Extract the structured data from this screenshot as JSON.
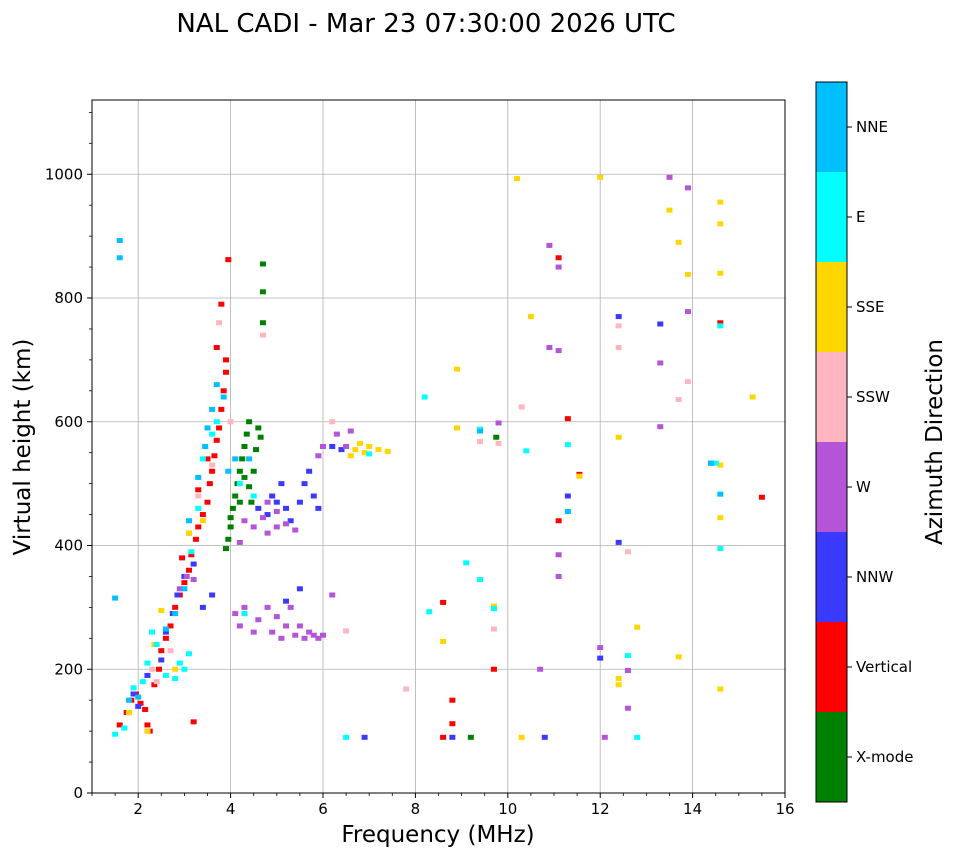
{
  "chart_data": {
    "type": "scatter",
    "title": "NAL CADI - Mar 23 07:30:00 2026 UTC",
    "xlabel": "Frequency (MHz)",
    "ylabel": "Virtual height (km)",
    "xlim": [
      1,
      16
    ],
    "ylim": [
      0,
      1120
    ],
    "xticks": [
      2,
      4,
      6,
      8,
      10,
      12,
      14,
      16
    ],
    "yticks": [
      0,
      200,
      400,
      600,
      800,
      1000
    ],
    "grid": true,
    "colorbar": {
      "label": "Azimuth Direction",
      "categories": [
        {
          "name": "X-mode",
          "color": "#008000"
        },
        {
          "name": "Vertical",
          "color": "#ff0000"
        },
        {
          "name": "NNW",
          "color": "#3a3aff"
        },
        {
          "name": "W",
          "color": "#b455d8"
        },
        {
          "name": "SSW",
          "color": "#ffb6c1"
        },
        {
          "name": "SSE",
          "color": "#ffd700"
        },
        {
          "name": "E",
          "color": "#00ffff"
        },
        {
          "name": "NNE",
          "color": "#00bfff"
        }
      ]
    },
    "series": [
      {
        "name": "X-mode",
        "points": [
          [
            3.9,
            395
          ],
          [
            3.95,
            410
          ],
          [
            4.0,
            430
          ],
          [
            4.0,
            445
          ],
          [
            4.05,
            460
          ],
          [
            4.1,
            480
          ],
          [
            4.15,
            500
          ],
          [
            4.2,
            520
          ],
          [
            4.25,
            540
          ],
          [
            4.3,
            560
          ],
          [
            4.35,
            580
          ],
          [
            4.4,
            600
          ],
          [
            4.3,
            510
          ],
          [
            4.4,
            495
          ],
          [
            4.5,
            520
          ],
          [
            4.55,
            555
          ],
          [
            4.6,
            590
          ],
          [
            4.65,
            575
          ],
          [
            4.2,
            470
          ],
          [
            4.45,
            470
          ],
          [
            4.7,
            855
          ],
          [
            4.7,
            810
          ],
          [
            4.7,
            760
          ],
          [
            9.2,
            90
          ],
          [
            9.75,
            575
          ]
        ]
      },
      {
        "name": "Vertical",
        "points": [
          [
            1.6,
            110
          ],
          [
            1.75,
            130
          ],
          [
            1.85,
            150
          ],
          [
            1.95,
            160
          ],
          [
            2.05,
            145
          ],
          [
            2.15,
            135
          ],
          [
            2.2,
            110
          ],
          [
            2.25,
            100
          ],
          [
            2.35,
            175
          ],
          [
            2.45,
            200
          ],
          [
            2.5,
            230
          ],
          [
            2.6,
            250
          ],
          [
            2.7,
            270
          ],
          [
            2.8,
            300
          ],
          [
            2.9,
            320
          ],
          [
            3.0,
            340
          ],
          [
            3.1,
            360
          ],
          [
            3.15,
            385
          ],
          [
            3.25,
            410
          ],
          [
            3.3,
            430
          ],
          [
            3.4,
            450
          ],
          [
            3.5,
            470
          ],
          [
            3.55,
            500
          ],
          [
            3.6,
            520
          ],
          [
            3.65,
            545
          ],
          [
            3.7,
            570
          ],
          [
            3.75,
            590
          ],
          [
            3.8,
            620
          ],
          [
            3.85,
            650
          ],
          [
            3.9,
            680
          ],
          [
            3.9,
            700
          ],
          [
            3.7,
            720
          ],
          [
            3.8,
            790
          ],
          [
            3.95,
            862
          ],
          [
            3.5,
            540
          ],
          [
            3.3,
            490
          ],
          [
            3.1,
            420
          ],
          [
            2.95,
            380
          ],
          [
            3.2,
            115
          ],
          [
            8.6,
            90
          ],
          [
            8.8,
            150
          ],
          [
            8.8,
            112
          ],
          [
            8.6,
            308
          ],
          [
            9.7,
            200
          ],
          [
            11.1,
            865
          ],
          [
            11.1,
            440
          ],
          [
            11.3,
            605
          ],
          [
            11.55,
            515
          ],
          [
            14.6,
            760
          ],
          [
            15.5,
            478
          ]
        ]
      },
      {
        "name": "NNW",
        "points": [
          [
            1.9,
            160
          ],
          [
            2.0,
            140
          ],
          [
            2.2,
            190
          ],
          [
            2.5,
            215
          ],
          [
            2.6,
            260
          ],
          [
            2.75,
            290
          ],
          [
            2.85,
            320
          ],
          [
            3.0,
            350
          ],
          [
            3.2,
            370
          ],
          [
            3.4,
            300
          ],
          [
            3.6,
            320
          ],
          [
            4.3,
            290
          ],
          [
            4.6,
            460
          ],
          [
            4.8,
            450
          ],
          [
            4.9,
            480
          ],
          [
            5.0,
            470
          ],
          [
            5.1,
            500
          ],
          [
            5.2,
            460
          ],
          [
            5.3,
            440
          ],
          [
            5.5,
            470
          ],
          [
            5.6,
            500
          ],
          [
            5.7,
            520
          ],
          [
            5.8,
            480
          ],
          [
            5.9,
            460
          ],
          [
            5.2,
            310
          ],
          [
            5.5,
            330
          ],
          [
            6.2,
            560
          ],
          [
            6.4,
            555
          ],
          [
            6.9,
            90
          ],
          [
            8.8,
            90
          ],
          [
            10.8,
            90
          ],
          [
            11.3,
            480
          ],
          [
            12.0,
            218
          ],
          [
            12.4,
            405
          ],
          [
            12.4,
            770
          ],
          [
            13.3,
            758
          ],
          [
            14.4,
            533
          ]
        ]
      },
      {
        "name": "W",
        "points": [
          [
            2.9,
            330
          ],
          [
            3.05,
            350
          ],
          [
            3.2,
            345
          ],
          [
            4.1,
            290
          ],
          [
            4.2,
            270
          ],
          [
            4.3,
            300
          ],
          [
            4.5,
            260
          ],
          [
            4.6,
            280
          ],
          [
            4.8,
            300
          ],
          [
            4.9,
            260
          ],
          [
            5.0,
            285
          ],
          [
            5.1,
            250
          ],
          [
            5.2,
            270
          ],
          [
            5.3,
            300
          ],
          [
            5.4,
            255
          ],
          [
            5.5,
            270
          ],
          [
            5.6,
            250
          ],
          [
            5.7,
            260
          ],
          [
            5.8,
            255
          ],
          [
            5.9,
            250
          ],
          [
            6.0,
            255
          ],
          [
            6.2,
            320
          ],
          [
            4.3,
            440
          ],
          [
            4.5,
            430
          ],
          [
            4.7,
            445
          ],
          [
            4.8,
            420
          ],
          [
            5.0,
            430
          ],
          [
            5.2,
            435
          ],
          [
            5.4,
            425
          ],
          [
            4.8,
            470
          ],
          [
            5.0,
            455
          ],
          [
            4.2,
            405
          ],
          [
            5.9,
            545
          ],
          [
            6.0,
            560
          ],
          [
            6.3,
            580
          ],
          [
            6.6,
            585
          ],
          [
            6.5,
            560
          ],
          [
            9.8,
            598
          ],
          [
            10.7,
            200
          ],
          [
            10.9,
            885
          ],
          [
            10.9,
            720
          ],
          [
            11.1,
            715
          ],
          [
            11.1,
            385
          ],
          [
            11.1,
            350
          ],
          [
            11.1,
            850
          ],
          [
            12.0,
            235
          ],
          [
            12.1,
            90
          ],
          [
            12.6,
            137
          ],
          [
            12.6,
            198
          ],
          [
            13.3,
            592
          ],
          [
            13.3,
            695
          ],
          [
            13.5,
            995
          ],
          [
            13.9,
            978
          ],
          [
            13.9,
            778
          ]
        ]
      },
      {
        "name": "SSW",
        "points": [
          [
            2.3,
            200
          ],
          [
            2.4,
            180
          ],
          [
            2.7,
            230
          ],
          [
            3.1,
            420
          ],
          [
            3.3,
            480
          ],
          [
            3.6,
            530
          ],
          [
            3.75,
            760
          ],
          [
            4.0,
            600
          ],
          [
            4.7,
            740
          ],
          [
            6.2,
            600
          ],
          [
            6.5,
            262
          ],
          [
            7.8,
            168
          ],
          [
            9.4,
            568
          ],
          [
            9.7,
            265
          ],
          [
            9.8,
            565
          ],
          [
            10.3,
            624
          ],
          [
            12.4,
            720
          ],
          [
            12.4,
            755
          ],
          [
            12.6,
            390
          ],
          [
            13.7,
            636
          ],
          [
            13.9,
            665
          ]
        ]
      },
      {
        "name": "SSE",
        "points": [
          [
            1.8,
            130
          ],
          [
            2.2,
            100
          ],
          [
            2.35,
            240
          ],
          [
            2.5,
            295
          ],
          [
            2.8,
            200
          ],
          [
            3.1,
            420
          ],
          [
            3.4,
            440
          ],
          [
            6.6,
            545
          ],
          [
            6.7,
            555
          ],
          [
            6.8,
            565
          ],
          [
            6.9,
            550
          ],
          [
            7.0,
            560
          ],
          [
            7.2,
            555
          ],
          [
            7.4,
            552
          ],
          [
            8.6,
            245
          ],
          [
            8.9,
            685
          ],
          [
            8.9,
            590
          ],
          [
            9.7,
            302
          ],
          [
            10.2,
            993
          ],
          [
            10.3,
            90
          ],
          [
            10.5,
            770
          ],
          [
            11.55,
            512
          ],
          [
            12.0,
            995
          ],
          [
            12.4,
            575
          ],
          [
            12.4,
            185
          ],
          [
            12.4,
            175
          ],
          [
            12.8,
            268
          ],
          [
            13.5,
            942
          ],
          [
            13.7,
            890
          ],
          [
            13.7,
            220
          ],
          [
            13.9,
            838
          ],
          [
            14.6,
            955
          ],
          [
            14.6,
            920
          ],
          [
            14.6,
            840
          ],
          [
            14.6,
            530
          ],
          [
            14.6,
            445
          ],
          [
            14.6,
            168
          ],
          [
            15.3,
            640
          ]
        ]
      },
      {
        "name": "E",
        "points": [
          [
            1.5,
            95
          ],
          [
            1.7,
            105
          ],
          [
            1.9,
            170
          ],
          [
            2.1,
            180
          ],
          [
            2.2,
            210
          ],
          [
            2.3,
            260
          ],
          [
            2.4,
            240
          ],
          [
            2.6,
            190
          ],
          [
            2.8,
            185
          ],
          [
            2.9,
            210
          ],
          [
            3.0,
            200
          ],
          [
            3.1,
            225
          ],
          [
            3.15,
            390
          ],
          [
            3.3,
            460
          ],
          [
            3.4,
            540
          ],
          [
            3.6,
            580
          ],
          [
            3.7,
            600
          ],
          [
            4.2,
            500
          ],
          [
            4.3,
            290
          ],
          [
            4.5,
            480
          ],
          [
            6.5,
            90
          ],
          [
            7.0,
            548
          ],
          [
            8.2,
            640
          ],
          [
            8.3,
            293
          ],
          [
            9.1,
            372
          ],
          [
            9.4,
            345
          ],
          [
            9.4,
            588
          ],
          [
            9.7,
            298
          ],
          [
            10.4,
            553
          ],
          [
            11.3,
            563
          ],
          [
            12.6,
            222
          ],
          [
            12.8,
            90
          ],
          [
            14.5,
            533
          ],
          [
            14.6,
            395
          ],
          [
            14.6,
            755
          ]
        ]
      },
      {
        "name": "NNE",
        "points": [
          [
            1.6,
            893
          ],
          [
            1.6,
            865
          ],
          [
            1.5,
            315
          ],
          [
            1.8,
            150
          ],
          [
            2.0,
            155
          ],
          [
            2.6,
            265
          ],
          [
            2.8,
            290
          ],
          [
            3.0,
            330
          ],
          [
            3.1,
            440
          ],
          [
            3.3,
            510
          ],
          [
            3.45,
            560
          ],
          [
            3.5,
            590
          ],
          [
            3.6,
            620
          ],
          [
            3.7,
            660
          ],
          [
            3.85,
            640
          ],
          [
            3.95,
            520
          ],
          [
            4.1,
            540
          ],
          [
            4.4,
            540
          ],
          [
            9.4,
            585
          ],
          [
            11.3,
            455
          ],
          [
            14.4,
            533
          ],
          [
            14.6,
            483
          ]
        ]
      }
    ]
  }
}
